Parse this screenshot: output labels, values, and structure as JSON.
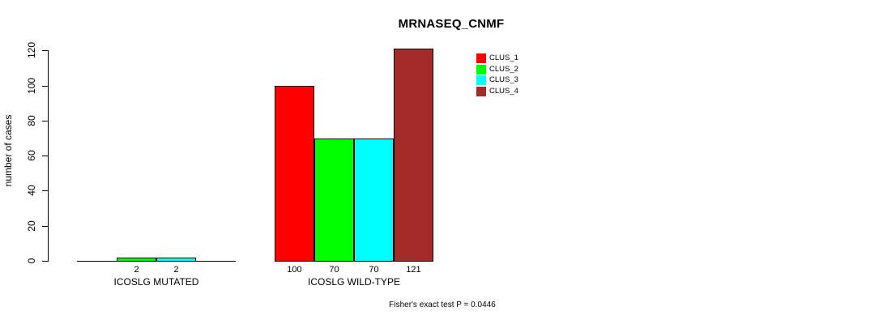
{
  "chart_data": {
    "type": "bar",
    "title": "MRNASEQ_CNMF",
    "xlabel": "",
    "ylabel": "number of cases",
    "ylim": [
      0,
      120
    ],
    "yticks": [
      0,
      20,
      40,
      60,
      80,
      100,
      120
    ],
    "grid": false,
    "legend_position": "top-right-inside",
    "legend_border": false,
    "categories": [
      "ICOSLG MUTATED",
      "ICOSLG WILD-TYPE"
    ],
    "series": [
      {
        "name": "CLUS_1",
        "color": "#FF0000",
        "values": [
          0,
          100
        ]
      },
      {
        "name": "CLUS_2",
        "color": "#00FF00",
        "values": [
          2,
          70
        ]
      },
      {
        "name": "CLUS_3",
        "color": "#00FFFF",
        "values": [
          2,
          70
        ]
      },
      {
        "name": "CLUS_4",
        "color": "#A52A2A",
        "values": [
          0,
          121
        ]
      }
    ],
    "bar_value_labels": "shown above axis for non-zero bars only",
    "visible_bar_value_labels": [
      "2",
      "2",
      "100",
      "70",
      "70",
      "121"
    ],
    "annotation": "Fisher's exact test P = 0.0446",
    "bar_border_color": "#000000",
    "background_color": "#FFFFFF"
  }
}
